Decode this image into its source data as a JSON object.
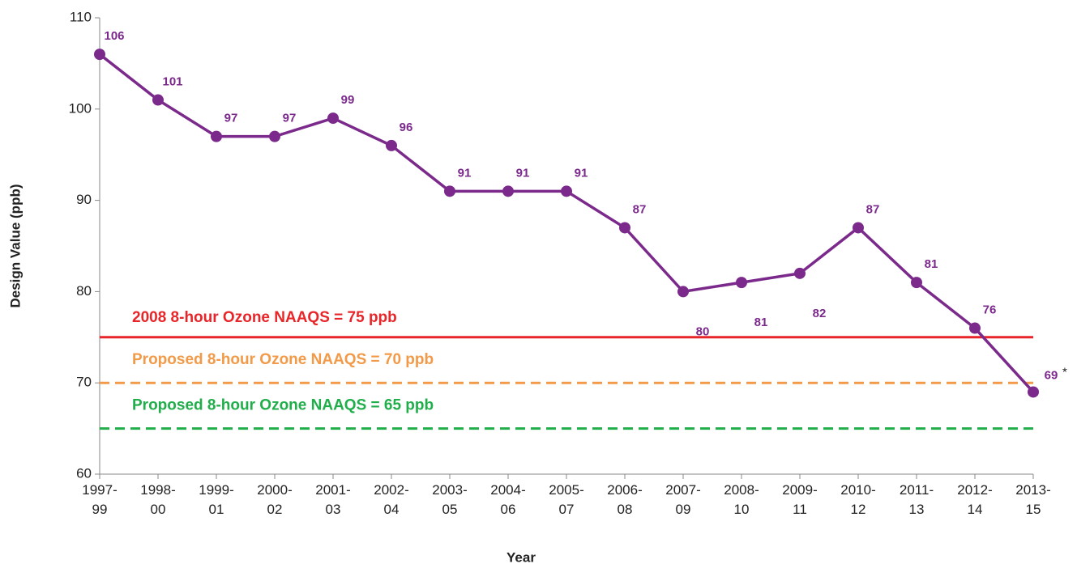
{
  "chart_data": {
    "type": "line",
    "x_label": "Year",
    "y_label": "Design Value (ppb)",
    "categories": [
      "1997-99",
      "1998-00",
      "1999-01",
      "2000-02",
      "2001-03",
      "2002-04",
      "2003-05",
      "2004-06",
      "2005-07",
      "2006-08",
      "2007-09",
      "2008-10",
      "2009-11",
      "2010-12",
      "2011-13",
      "2012-14",
      "2013-15"
    ],
    "series": [
      {
        "color": "#7b2a8c",
        "values": [
          106,
          101,
          97,
          97,
          99,
          96,
          91,
          91,
          91,
          87,
          80,
          81,
          82,
          87,
          81,
          76,
          69
        ]
      }
    ],
    "annotation": "*",
    "ylim": [
      60,
      110
    ],
    "yticks": [
      60,
      70,
      80,
      90,
      100,
      110
    ],
    "reference_lines": [
      {
        "label": "2008 8-hour Ozone NAAQS = 75 ppb",
        "value": 75,
        "color": "#e8262a",
        "dashed": false
      },
      {
        "label": "Proposed 8-hour Ozone NAAQS = 70 ppb",
        "value": 70,
        "color": "#f29a48",
        "dashed": true
      },
      {
        "label": "Proposed 8-hour Ozone NAAQS = 65 ppb",
        "value": 65,
        "color": "#1fae4a",
        "dashed": true
      }
    ]
  }
}
